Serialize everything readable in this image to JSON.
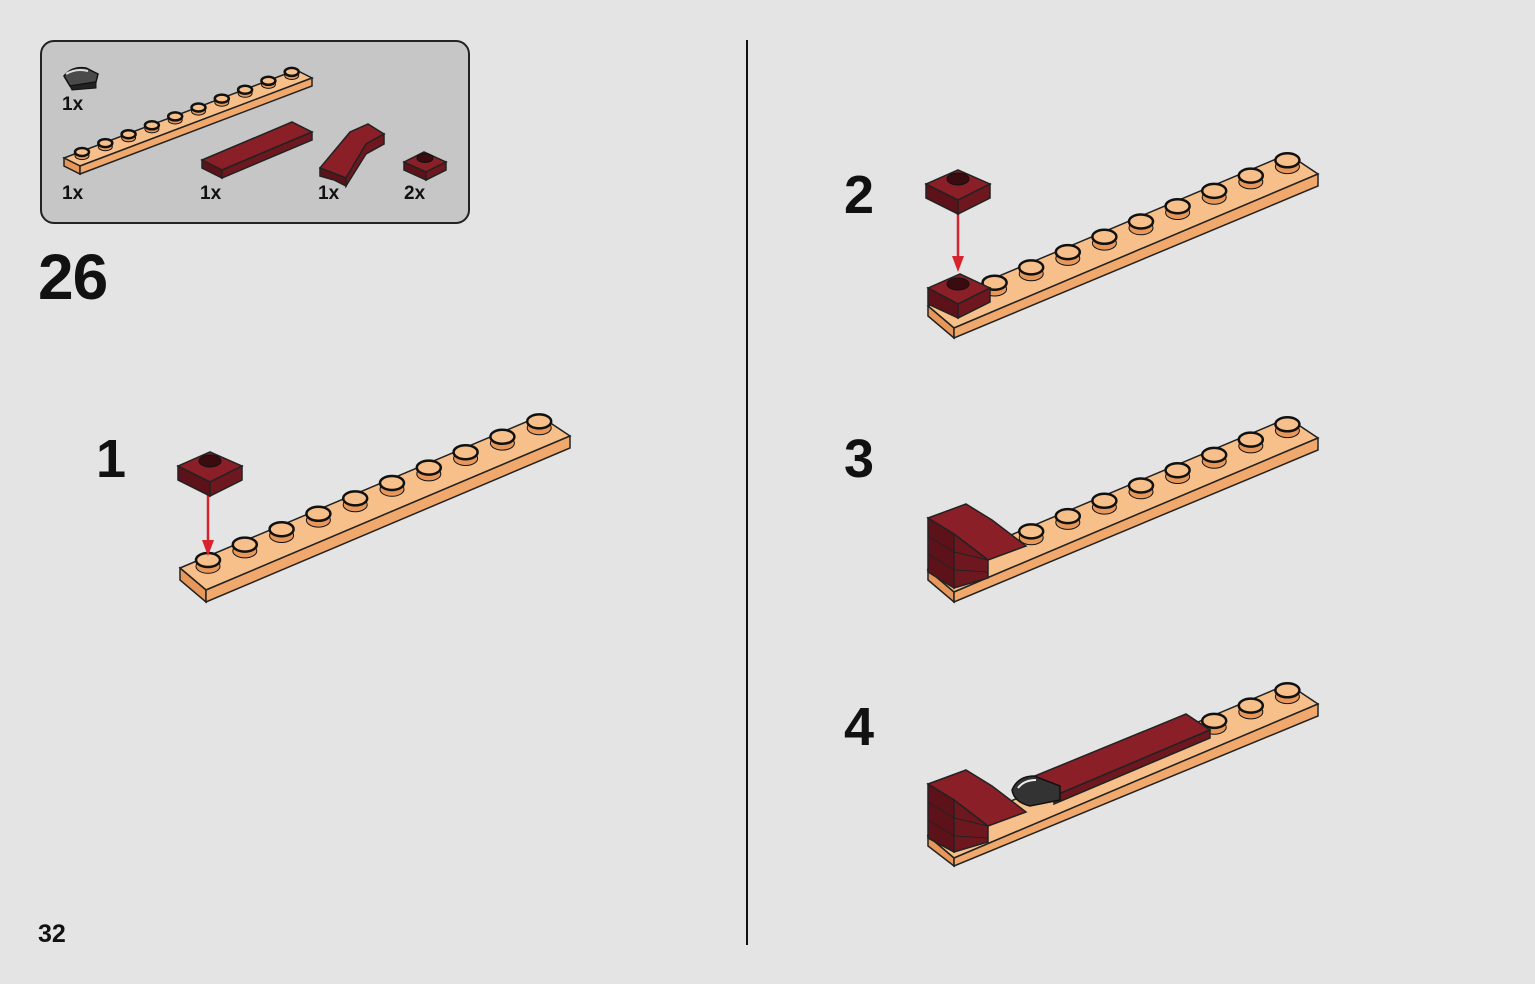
{
  "parts": [
    {
      "name": "black-curved-slope",
      "qty": "1x"
    },
    {
      "name": "tan-plate-1x10",
      "qty": "1x"
    },
    {
      "name": "dark-red-tile-1x6",
      "qty": "1x"
    },
    {
      "name": "dark-red-slope",
      "qty": "1x"
    },
    {
      "name": "dark-red-plate-1x1",
      "qty": "2x"
    }
  ],
  "step_number": "26",
  "sub_steps": [
    "1",
    "2",
    "3",
    "4"
  ],
  "page_number": "32",
  "colors": {
    "background": "#e4e4e4",
    "parts_box": "#c6c6c6",
    "tan": "#f0a86c",
    "dark_red": "#7a1b22",
    "arrow": "#d8232f",
    "black_piece": "#333333"
  }
}
